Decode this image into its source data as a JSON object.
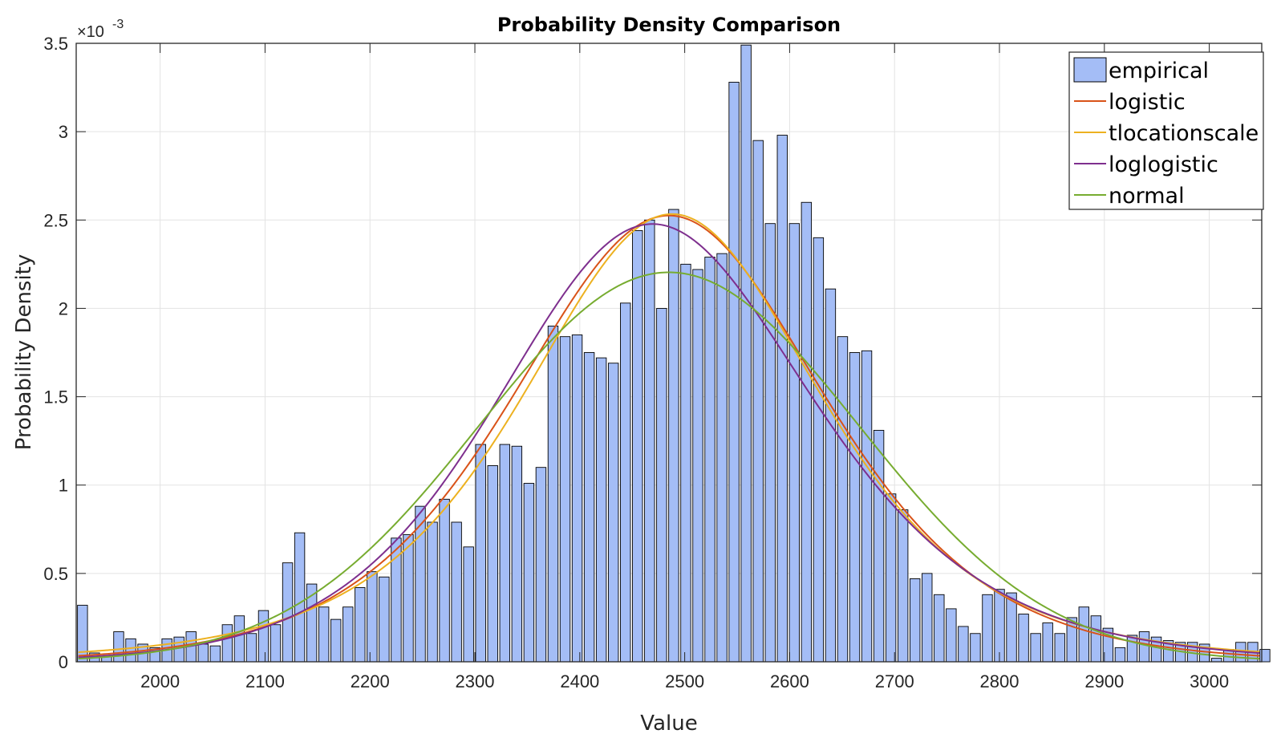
{
  "chart_data": {
    "type": "bar",
    "title": "Probability Density Comparison",
    "xlabel": "Value",
    "ylabel": "Probability Density",
    "y_exponent_label": "×10",
    "y_exponent": "-3",
    "xlim": [
      1920,
      3050
    ],
    "ylim": [
      0,
      0.0035
    ],
    "xticks": [
      2000,
      2100,
      2200,
      2300,
      2400,
      2500,
      2600,
      2700,
      2800,
      2900,
      3000
    ],
    "xtick_labels": [
      "2000",
      "2100",
      "2200",
      "2300",
      "2400",
      "2500",
      "2600",
      "2700",
      "2800",
      "2900",
      "3000"
    ],
    "yticks": [
      0,
      0.0005,
      0.001,
      0.0015,
      0.002,
      0.0025,
      0.003,
      0.0035
    ],
    "ytick_labels": [
      "0",
      "0.5",
      "1",
      "1.5",
      "2",
      "2.5",
      "3",
      "3.5"
    ],
    "grid": true,
    "legend_position": "top-right",
    "histogram": {
      "name": "empirical",
      "color": "#a4bdf6",
      "edge_color": "#000000",
      "bin_start": 1926,
      "bin_width": 11.5,
      "bar_fraction": 0.83,
      "values": [
        0.32,
        0.05,
        0.03,
        0.17,
        0.13,
        0.1,
        0.08,
        0.13,
        0.14,
        0.17,
        0.1,
        0.09,
        0.21,
        0.26,
        0.16,
        0.29,
        0.21,
        0.56,
        0.73,
        0.44,
        0.31,
        0.24,
        0.31,
        0.42,
        0.51,
        0.48,
        0.7,
        0.72,
        0.88,
        0.79,
        0.92,
        0.79,
        0.65,
        1.23,
        1.11,
        1.23,
        1.22,
        1.01,
        1.1,
        1.9,
        1.84,
        1.85,
        1.75,
        1.72,
        1.69,
        2.03,
        2.44,
        2.5,
        2.0,
        2.56,
        2.25,
        2.22,
        2.29,
        2.31,
        3.28,
        3.49,
        2.95,
        2.48,
        2.98,
        2.48,
        2.6,
        2.4,
        2.11,
        1.84,
        1.75,
        1.76,
        1.31,
        0.95,
        0.86,
        0.47,
        0.5,
        0.38,
        0.3,
        0.2,
        0.16,
        0.38,
        0.41,
        0.39,
        0.27,
        0.16,
        0.22,
        0.16,
        0.25,
        0.31,
        0.26,
        0.19,
        0.08,
        0.15,
        0.17,
        0.14,
        0.12,
        0.11,
        0.11,
        0.1,
        0.02,
        0.07,
        0.11,
        0.11,
        0.07
      ],
      "value_scale": 0.001
    },
    "series": [
      {
        "name": "logistic",
        "color": "#d95319",
        "dist": "logistic",
        "mu": 2485,
        "s": 99
      },
      {
        "name": "tlocationscale",
        "color": "#edb120",
        "dist": "tlocationscale",
        "mu": 2488,
        "sigma": 148,
        "nu": 4
      },
      {
        "name": "loglogistic",
        "color": "#7e2f8e",
        "dist": "loglogistic",
        "mu": 7.815,
        "sigma": 0.0408
      },
      {
        "name": "normal",
        "color": "#77ac30",
        "dist": "normal",
        "mu": 2485,
        "sigma": 181
      }
    ],
    "legend_entries": [
      "empirical",
      "logistic",
      "tlocationscale",
      "loglogistic",
      "normal"
    ]
  }
}
